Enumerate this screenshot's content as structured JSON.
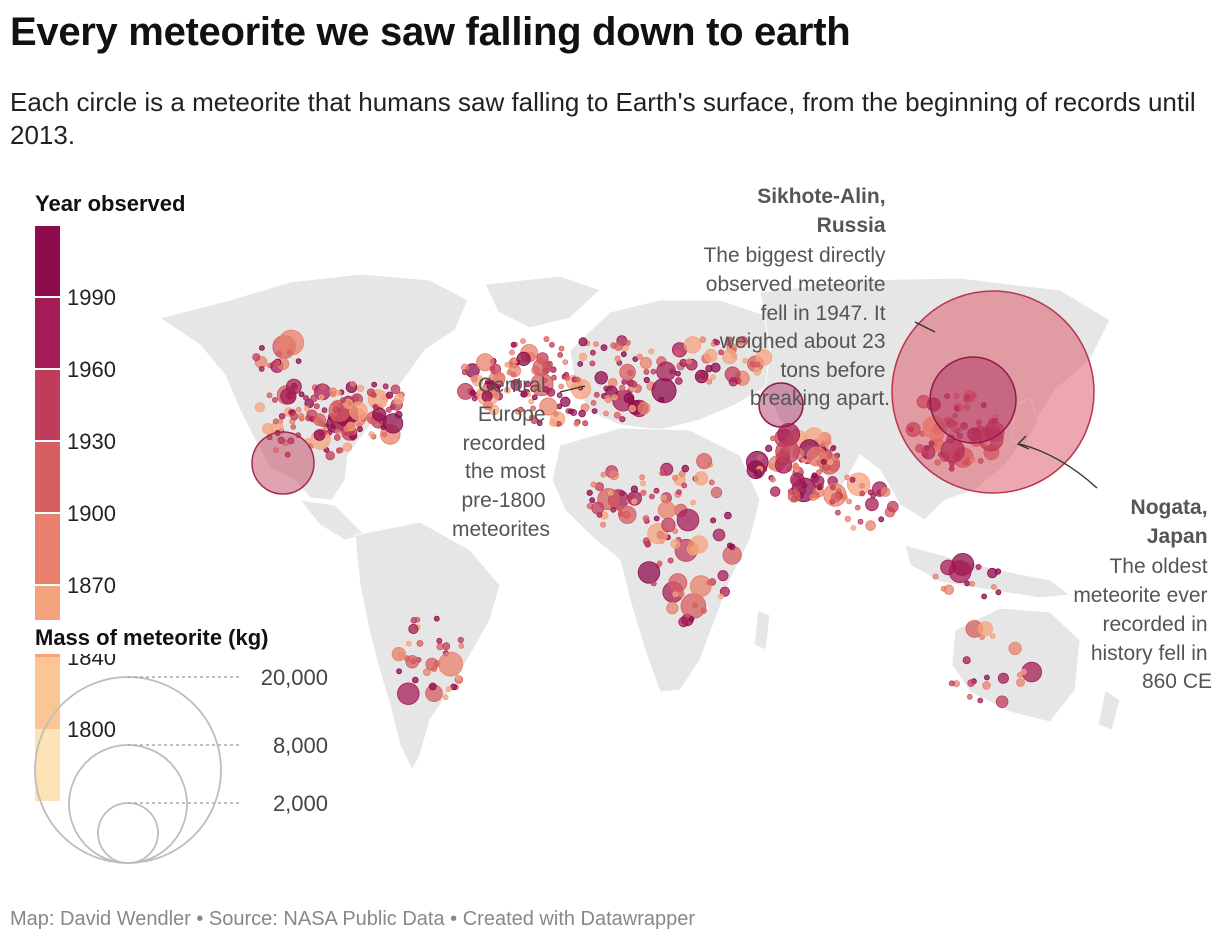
{
  "header": {
    "title": "Every meteorite we saw falling down to earth",
    "subtitle": "Each circle is a meteorite that humans saw falling to Earth's surface, from the beginning of records until 2013."
  },
  "legend": {
    "year_title": "Year observed",
    "year_ticks": [
      "1990",
      "1960",
      "1930",
      "1900",
      "1870",
      "1840",
      "1800"
    ],
    "year_colors": [
      "#8e0b4d",
      "#a51d55",
      "#bf3d5a",
      "#d65e60",
      "#e8806c",
      "#f5a37c",
      "#fbc694",
      "#fde2b5"
    ],
    "mass_title": "Mass of meteorite (kg)",
    "mass_ticks": [
      {
        "label": "20,000",
        "kg": 20000
      },
      {
        "label": "8,000",
        "kg": 8000
      },
      {
        "label": "2,000",
        "kg": 2000
      }
    ]
  },
  "annotations": {
    "sikhote": {
      "title_lines": [
        "Sikhote-Alin,",
        "Russia"
      ],
      "text_lines": [
        "The biggest directly",
        "observed meteorite",
        "fell in 1947. It",
        "weighed about 23",
        "tons before",
        "breaking apart."
      ]
    },
    "europe": {
      "text_lines": [
        "Central",
        "Europe",
        "recorded",
        "the most",
        "pre-1800",
        "meteorites"
      ]
    },
    "nogata": {
      "title_lines": [
        "Nogata,",
        "Japan"
      ],
      "text_lines": [
        "The oldest",
        "meteorite ever",
        "recorded in",
        "history fell in",
        "860 CE"
      ]
    }
  },
  "chart_data": {
    "type": "map",
    "color_scale": "year observed",
    "size_scale": "mass (kg)",
    "highlighted_falls": [
      {
        "name": "Sikhote-Alin",
        "location": "Russia",
        "year": 1947,
        "mass_kg": 23000
      },
      {
        "name": "Nogata",
        "location": "Japan",
        "year": 860
      }
    ]
  },
  "footer": {
    "source": "Map: David Wendler • Source: NASA Public Data • Created with Datawrapper"
  }
}
